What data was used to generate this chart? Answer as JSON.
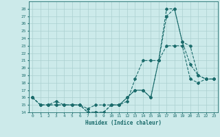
{
  "title": "",
  "xlabel": "Humidex (Indice chaleur)",
  "xlim": [
    -0.5,
    23.5
  ],
  "ylim": [
    14,
    29
  ],
  "yticks": [
    14,
    15,
    16,
    17,
    18,
    19,
    20,
    21,
    22,
    23,
    24,
    25,
    26,
    27,
    28
  ],
  "xticks": [
    0,
    1,
    2,
    3,
    4,
    5,
    6,
    7,
    8,
    9,
    10,
    11,
    12,
    13,
    14,
    15,
    16,
    17,
    18,
    19,
    20,
    21,
    22,
    23
  ],
  "bg_color": "#cceaea",
  "line_color": "#1a6b6b",
  "grid_color": "#aacfcf",
  "line1_y": [
    16,
    15,
    15,
    15,
    15,
    15,
    15,
    14,
    14,
    14,
    15,
    15,
    15.5,
    18.5,
    21,
    21,
    21,
    23,
    23,
    23,
    18.5,
    18,
    18.5,
    18.5
  ],
  "line2_y": [
    16,
    15,
    15,
    15.5,
    15,
    15,
    15,
    14.5,
    15,
    15,
    15,
    15,
    16,
    17,
    17,
    16,
    21,
    28,
    28,
    23.5,
    20.5,
    19,
    18.5,
    18.5
  ],
  "line3_y": [
    16,
    15,
    15,
    15,
    15,
    15,
    15,
    14,
    14,
    14,
    15,
    15,
    16,
    17,
    17,
    16,
    21,
    27,
    28,
    23.5,
    23,
    19,
    18.5,
    18.5
  ]
}
